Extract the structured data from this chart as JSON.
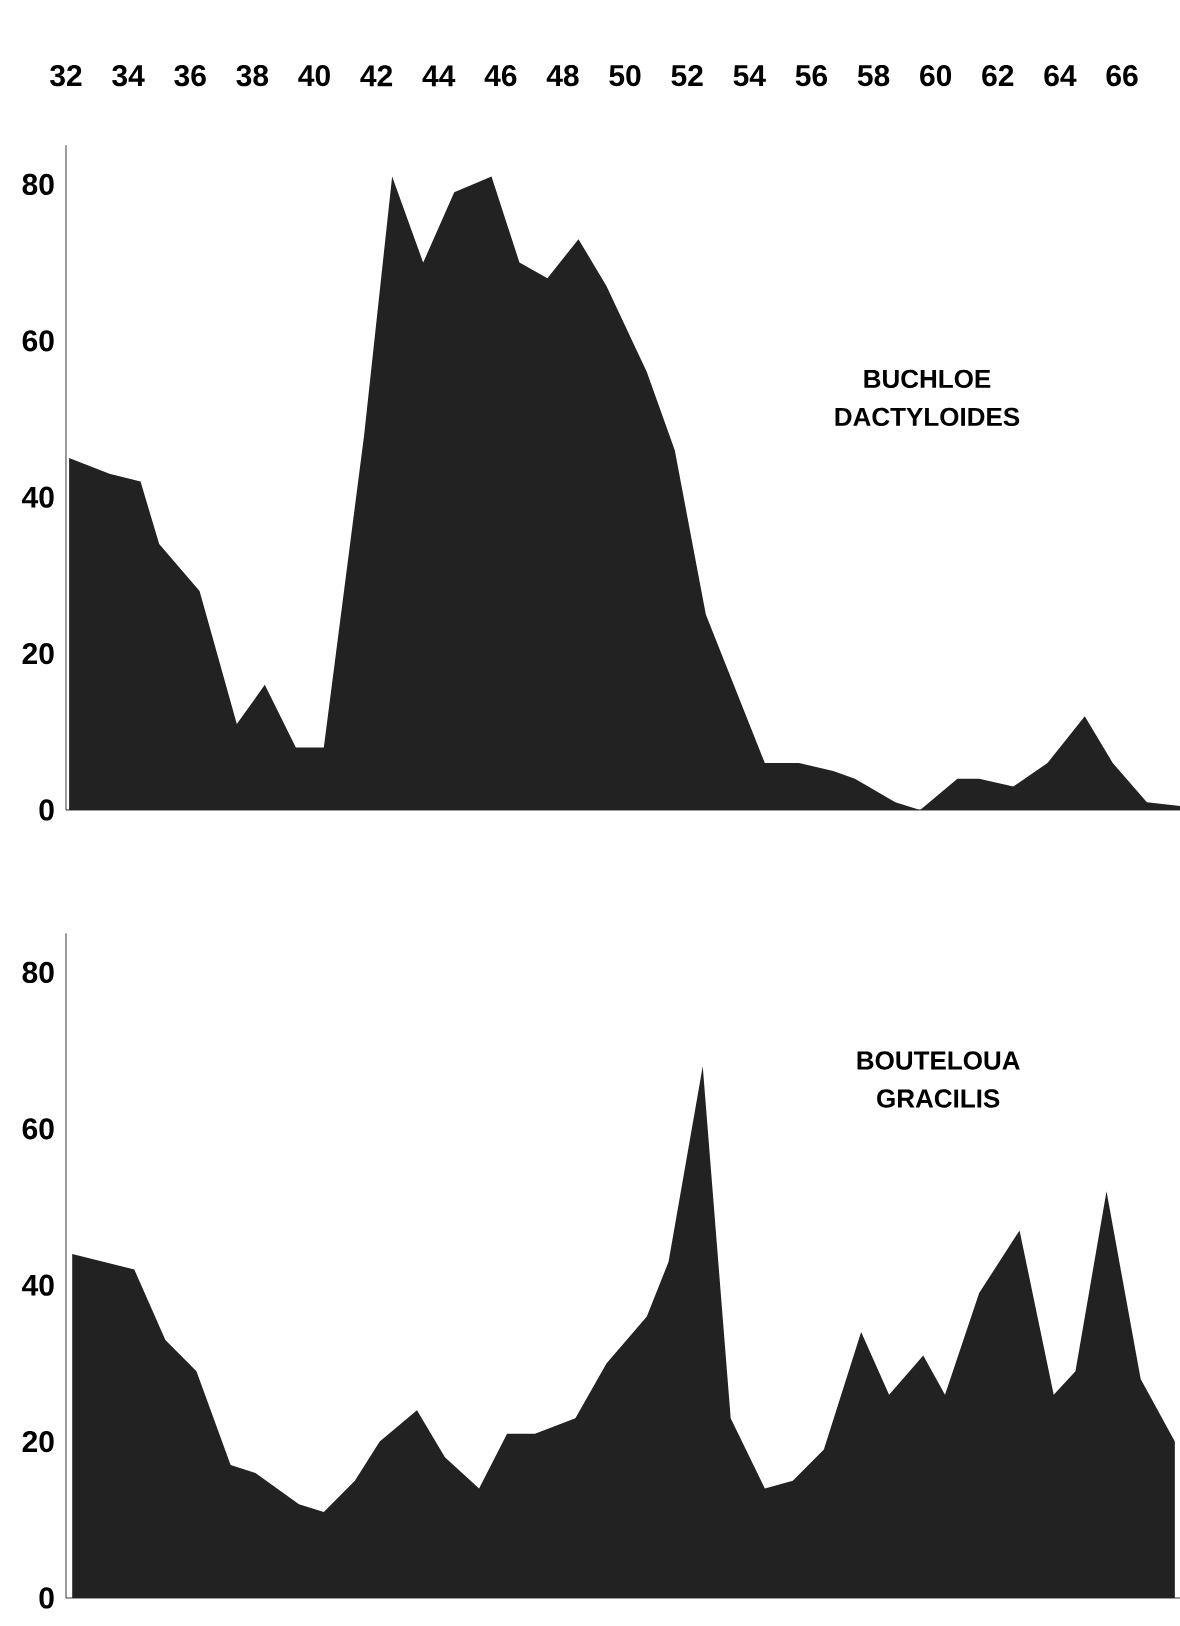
{
  "chart_data": [
    {
      "type": "area",
      "xlim": [
        32,
        68
      ],
      "xticks": [
        32,
        34,
        36,
        38,
        40,
        42,
        44,
        46,
        48,
        50,
        52,
        54,
        56,
        58,
        60,
        62,
        64,
        66
      ],
      "ylim": [
        0,
        85
      ],
      "yticks": [
        0,
        20,
        40,
        60,
        80
      ],
      "x": [
        32.1,
        33.4,
        34.4,
        35.0,
        36.3,
        37.5,
        38.4,
        39.4,
        40.3,
        41.6,
        42.5,
        43.5,
        44.5,
        45.7,
        46.6,
        47.5,
        48.5,
        49.4,
        50.7,
        51.6,
        52.6,
        54.5,
        55.6,
        56.7,
        57.4,
        58.7,
        59.5,
        60.7,
        61.4,
        62.5,
        63.6,
        64.8,
        65.7,
        66.8,
        67.9
      ],
      "series": [
        {
          "color": "#222222",
          "values": [
            45,
            43,
            42,
            34,
            28,
            11,
            16,
            8,
            8,
            48,
            81,
            70,
            79,
            81,
            70,
            68,
            73,
            67,
            56,
            46,
            25,
            6,
            6,
            5,
            4,
            1,
            0,
            4,
            4,
            3,
            6,
            12,
            6,
            1,
            0.5
          ]
        }
      ],
      "annotations": [
        "BUCHLOE DACTYLOIDES"
      ]
    },
    {
      "type": "area",
      "xlim": [
        32,
        68
      ],
      "ylim": [
        0,
        85
      ],
      "yticks": [
        0,
        20,
        40,
        60,
        80
      ],
      "tick_labels": "y",
      "x": [
        32.2,
        34.2,
        35.2,
        36.2,
        37.3,
        38.1,
        39.5,
        40.3,
        41.3,
        42.1,
        43.3,
        44.2,
        45.3,
        46.2,
        47.1,
        48.4,
        49.4,
        50.7,
        51.4,
        52.5,
        53.4,
        54.5,
        55.4,
        56.4,
        57.6,
        58.5,
        59.6,
        60.3,
        61.4,
        62.7,
        63.8,
        64.5,
        65.5,
        66.6,
        67.7
      ],
      "series": [
        {
          "color": "#222222",
          "values": [
            44,
            42,
            33,
            29,
            17,
            16,
            12,
            11,
            15,
            20,
            24,
            18,
            14,
            21,
            21,
            23,
            30,
            36,
            43,
            68,
            23,
            14,
            15,
            19,
            34,
            26,
            31,
            26,
            39,
            47,
            26,
            29,
            52,
            28,
            20
          ]
        }
      ],
      "annotations": [
        "BOUTELOUA GRACILIS"
      ]
    }
  ]
}
